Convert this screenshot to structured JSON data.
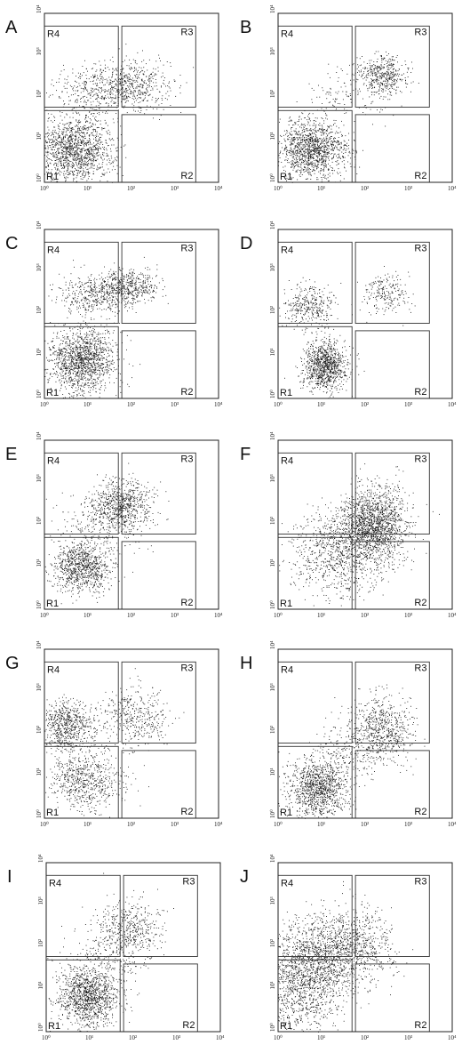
{
  "figure": {
    "panels": [
      {
        "letter": "A"
      },
      {
        "letter": "B"
      },
      {
        "letter": "C"
      },
      {
        "letter": "D"
      },
      {
        "letter": "E"
      },
      {
        "letter": "F"
      },
      {
        "letter": "G"
      },
      {
        "letter": "H"
      },
      {
        "letter": "I"
      },
      {
        "letter": "J"
      }
    ]
  },
  "chart_data": [
    {
      "panel": "A",
      "type": "scatter",
      "xscale": "log",
      "yscale": "log",
      "xlim": [
        1,
        10000
      ],
      "ylim": [
        1,
        10000
      ],
      "x_ticks": [
        "10⁰",
        "10¹",
        "10²",
        "10³",
        "10⁴"
      ],
      "y_ticks": [
        "10⁰",
        "10¹",
        "10²",
        "10³",
        "10⁴"
      ],
      "regions": [
        {
          "name": "R1",
          "x": [
            1,
            50
          ],
          "y": [
            1,
            50
          ]
        },
        {
          "name": "R2",
          "x": [
            60,
            3000
          ],
          "y": [
            1,
            40
          ]
        },
        {
          "name": "R3",
          "x": [
            60,
            3000
          ],
          "y": [
            60,
            5000
          ]
        },
        {
          "name": "R4",
          "x": [
            1,
            50
          ],
          "y": [
            60,
            5000
          ]
        }
      ],
      "clusters": [
        {
          "x": 5,
          "y": 6,
          "sx": 0.45,
          "sy": 0.4,
          "n": 1400
        },
        {
          "x": 100,
          "y": 200,
          "sx": 0.45,
          "sy": 0.3,
          "n": 500
        },
        {
          "x": 15,
          "y": 150,
          "sx": 0.5,
          "sy": 0.3,
          "n": 350
        }
      ]
    },
    {
      "panel": "B",
      "type": "scatter",
      "xscale": "log",
      "yscale": "log",
      "xlim": [
        1,
        10000
      ],
      "ylim": [
        1,
        10000
      ],
      "x_ticks": [
        "10⁰",
        "10¹",
        "10²",
        "10³",
        "10⁴"
      ],
      "y_ticks": [
        "10⁰",
        "10¹",
        "10²",
        "10³",
        "10⁴"
      ],
      "regions": [
        {
          "name": "R1",
          "x": [
            1,
            50
          ],
          "y": [
            1,
            50
          ]
        },
        {
          "name": "R2",
          "x": [
            60,
            3000
          ],
          "y": [
            1,
            40
          ]
        },
        {
          "name": "R3",
          "x": [
            60,
            3000
          ],
          "y": [
            60,
            5000
          ]
        },
        {
          "name": "R4",
          "x": [
            1,
            50
          ],
          "y": [
            60,
            5000
          ]
        }
      ],
      "clusters": [
        {
          "x": 6,
          "y": 6,
          "sx": 0.4,
          "sy": 0.35,
          "n": 1300
        },
        {
          "x": 250,
          "y": 350,
          "sx": 0.3,
          "sy": 0.25,
          "n": 450
        },
        {
          "x": 40,
          "y": 120,
          "sx": 0.5,
          "sy": 0.35,
          "n": 120
        }
      ]
    },
    {
      "panel": "C",
      "type": "scatter",
      "xscale": "log",
      "yscale": "log",
      "xlim": [
        1,
        10000
      ],
      "ylim": [
        1,
        10000
      ],
      "x_ticks": [
        "10⁰",
        "10¹",
        "10²",
        "10³",
        "10⁴"
      ],
      "y_ticks": [
        "10⁰",
        "10¹",
        "10²",
        "10³",
        "10⁴"
      ],
      "regions": [
        {
          "name": "R1",
          "x": [
            1,
            50
          ],
          "y": [
            1,
            50
          ]
        },
        {
          "name": "R2",
          "x": [
            60,
            3000
          ],
          "y": [
            1,
            40
          ]
        },
        {
          "name": "R3",
          "x": [
            60,
            3000
          ],
          "y": [
            60,
            5000
          ]
        },
        {
          "name": "R4",
          "x": [
            1,
            50
          ],
          "y": [
            60,
            5000
          ]
        }
      ],
      "clusters": [
        {
          "x": 7,
          "y": 8,
          "sx": 0.4,
          "sy": 0.4,
          "n": 1400
        },
        {
          "x": 15,
          "y": 300,
          "sx": 0.45,
          "sy": 0.25,
          "n": 450
        },
        {
          "x": 80,
          "y": 450,
          "sx": 0.35,
          "sy": 0.2,
          "n": 450
        }
      ]
    },
    {
      "panel": "D",
      "type": "scatter",
      "xscale": "log",
      "yscale": "log",
      "xlim": [
        1,
        10000
      ],
      "ylim": [
        1,
        10000
      ],
      "x_ticks": [
        "10⁰",
        "10¹",
        "10²",
        "10³",
        "10⁴"
      ],
      "y_ticks": [
        "10⁰",
        "10¹",
        "10²",
        "10³",
        "10⁴"
      ],
      "regions": [
        {
          "name": "R1",
          "x": [
            1,
            50
          ],
          "y": [
            1,
            50
          ]
        },
        {
          "name": "R2",
          "x": [
            60,
            3000
          ],
          "y": [
            1,
            40
          ]
        },
        {
          "name": "R3",
          "x": [
            60,
            3000
          ],
          "y": [
            60,
            5000
          ]
        },
        {
          "name": "R4",
          "x": [
            1,
            50
          ],
          "y": [
            60,
            5000
          ]
        }
      ],
      "clusters": [
        {
          "x": 12,
          "y": 6,
          "sx": 0.25,
          "sy": 0.3,
          "n": 1000
        },
        {
          "x": 5,
          "y": 150,
          "sx": 0.3,
          "sy": 0.25,
          "n": 350
        },
        {
          "x": 300,
          "y": 300,
          "sx": 0.3,
          "sy": 0.25,
          "n": 220
        }
      ]
    },
    {
      "panel": "E",
      "type": "scatter",
      "xscale": "log",
      "yscale": "log",
      "xlim": [
        1,
        10000
      ],
      "ylim": [
        1,
        10000
      ],
      "x_ticks": [
        "10⁰",
        "10¹",
        "10²",
        "10³",
        "10⁴"
      ],
      "y_ticks": [
        "10⁰",
        "10¹",
        "10²",
        "10³",
        "10⁴"
      ],
      "regions": [
        {
          "name": "R1",
          "x": [
            1,
            50
          ],
          "y": [
            1,
            50
          ]
        },
        {
          "name": "R2",
          "x": [
            60,
            3000
          ],
          "y": [
            1,
            40
          ]
        },
        {
          "name": "R3",
          "x": [
            60,
            3000
          ],
          "y": [
            60,
            5000
          ]
        },
        {
          "name": "R4",
          "x": [
            1,
            50
          ],
          "y": [
            60,
            5000
          ]
        }
      ],
      "clusters": [
        {
          "x": 7,
          "y": 10,
          "sx": 0.35,
          "sy": 0.3,
          "n": 900
        },
        {
          "x": 60,
          "y": 300,
          "sx": 0.35,
          "sy": 0.3,
          "n": 700
        },
        {
          "x": 20,
          "y": 100,
          "sx": 0.5,
          "sy": 0.35,
          "n": 250
        }
      ]
    },
    {
      "panel": "F",
      "type": "scatter",
      "xscale": "log",
      "yscale": "log",
      "xlim": [
        1,
        10000
      ],
      "ylim": [
        1,
        10000
      ],
      "x_ticks": [
        "10⁰",
        "10¹",
        "10²",
        "10³",
        "10⁴"
      ],
      "y_ticks": [
        "10⁰",
        "10¹",
        "10²",
        "10³",
        "10⁴"
      ],
      "regions": [
        {
          "name": "R1",
          "x": [
            1,
            50
          ],
          "y": [
            1,
            50
          ]
        },
        {
          "name": "R2",
          "x": [
            60,
            3000
          ],
          "y": [
            1,
            40
          ]
        },
        {
          "name": "R3",
          "x": [
            60,
            3000
          ],
          "y": [
            60,
            5000
          ]
        },
        {
          "name": "R4",
          "x": [
            1,
            50
          ],
          "y": [
            60,
            5000
          ]
        }
      ],
      "clusters": [
        {
          "x": 150,
          "y": 100,
          "sx": 0.4,
          "sy": 0.45,
          "n": 1700
        },
        {
          "x": 20,
          "y": 20,
          "sx": 0.5,
          "sy": 0.5,
          "n": 800
        }
      ]
    },
    {
      "panel": "G",
      "type": "scatter",
      "xscale": "log",
      "yscale": "log",
      "xlim": [
        1,
        10000
      ],
      "ylim": [
        1,
        10000
      ],
      "x_ticks": [
        "10⁰",
        "10¹",
        "10²",
        "10³",
        "10⁴"
      ],
      "y_ticks": [
        "10⁰",
        "10¹",
        "10²",
        "10³",
        "10⁴"
      ],
      "regions": [
        {
          "name": "R1",
          "x": [
            1,
            50
          ],
          "y": [
            1,
            50
          ]
        },
        {
          "name": "R2",
          "x": [
            60,
            3000
          ],
          "y": [
            1,
            40
          ]
        },
        {
          "name": "R3",
          "x": [
            60,
            3000
          ],
          "y": [
            60,
            5000
          ]
        },
        {
          "name": "R4",
          "x": [
            1,
            50
          ],
          "y": [
            60,
            5000
          ]
        }
      ],
      "clusters": [
        {
          "x": 3,
          "y": 150,
          "sx": 0.35,
          "sy": 0.3,
          "n": 700
        },
        {
          "x": 9,
          "y": 8,
          "sx": 0.4,
          "sy": 0.35,
          "n": 650
        },
        {
          "x": 120,
          "y": 250,
          "sx": 0.4,
          "sy": 0.35,
          "n": 400
        }
      ]
    },
    {
      "panel": "H",
      "type": "scatter",
      "xscale": "log",
      "yscale": "log",
      "xlim": [
        1,
        10000
      ],
      "ylim": [
        1,
        10000
      ],
      "x_ticks": [
        "10⁰",
        "10¹",
        "10²",
        "10³",
        "10⁴"
      ],
      "y_ticks": [
        "10⁰",
        "10¹",
        "10²",
        "10³",
        "10⁴"
      ],
      "regions": [
        {
          "name": "R1",
          "x": [
            1,
            50
          ],
          "y": [
            1,
            50
          ]
        },
        {
          "name": "R2",
          "x": [
            60,
            3000
          ],
          "y": [
            1,
            40
          ]
        },
        {
          "name": "R3",
          "x": [
            60,
            3000
          ],
          "y": [
            60,
            5000
          ]
        },
        {
          "name": "R4",
          "x": [
            1,
            50
          ],
          "y": [
            60,
            5000
          ]
        }
      ],
      "clusters": [
        {
          "x": 8,
          "y": 5,
          "sx": 0.35,
          "sy": 0.35,
          "n": 1100
        },
        {
          "x": 250,
          "y": 120,
          "sx": 0.35,
          "sy": 0.4,
          "n": 650
        },
        {
          "x": 40,
          "y": 40,
          "sx": 0.4,
          "sy": 0.35,
          "n": 200
        }
      ]
    },
    {
      "panel": "I",
      "type": "scatter",
      "xscale": "log",
      "yscale": "log",
      "xlim": [
        1,
        10000
      ],
      "ylim": [
        1,
        10000
      ],
      "x_ticks": [
        "10⁰",
        "10¹",
        "10²",
        "10³",
        "10⁴"
      ],
      "y_ticks": [
        "10⁰",
        "10¹",
        "10²",
        "10³",
        "10⁴"
      ],
      "regions": [
        {
          "name": "R1",
          "x": [
            1,
            50
          ],
          "y": [
            1,
            50
          ]
        },
        {
          "name": "R2",
          "x": [
            60,
            3000
          ],
          "y": [
            1,
            40
          ]
        },
        {
          "name": "R3",
          "x": [
            60,
            3000
          ],
          "y": [
            60,
            5000
          ]
        },
        {
          "name": "R4",
          "x": [
            1,
            50
          ],
          "y": [
            60,
            5000
          ]
        }
      ],
      "clusters": [
        {
          "x": 9,
          "y": 7,
          "sx": 0.35,
          "sy": 0.35,
          "n": 1200
        },
        {
          "x": 80,
          "y": 300,
          "sx": 0.4,
          "sy": 0.35,
          "n": 450
        },
        {
          "x": 30,
          "y": 60,
          "sx": 0.4,
          "sy": 0.4,
          "n": 200
        }
      ]
    },
    {
      "panel": "J",
      "type": "scatter",
      "xscale": "log",
      "yscale": "log",
      "xlim": [
        1,
        10000
      ],
      "ylim": [
        1,
        10000
      ],
      "x_ticks": [
        "10⁰",
        "10¹",
        "10²",
        "10³",
        "10⁴"
      ],
      "y_ticks": [
        "10⁰",
        "10¹",
        "10²",
        "10³",
        "10⁴"
      ],
      "regions": [
        {
          "name": "R1",
          "x": [
            1,
            50
          ],
          "y": [
            1,
            50
          ]
        },
        {
          "name": "R2",
          "x": [
            60,
            3000
          ],
          "y": [
            1,
            40
          ]
        },
        {
          "name": "R3",
          "x": [
            60,
            3000
          ],
          "y": [
            60,
            5000
          ]
        },
        {
          "name": "R4",
          "x": [
            1,
            50
          ],
          "y": [
            60,
            5000
          ]
        }
      ],
      "clusters": [
        {
          "x": 6,
          "y": 40,
          "sx": 0.5,
          "sy": 0.55,
          "n": 1500
        },
        {
          "x": 60,
          "y": 120,
          "sx": 0.45,
          "sy": 0.45,
          "n": 700
        },
        {
          "x": 3,
          "y": 5,
          "sx": 0.45,
          "sy": 0.45,
          "n": 400
        }
      ]
    }
  ]
}
